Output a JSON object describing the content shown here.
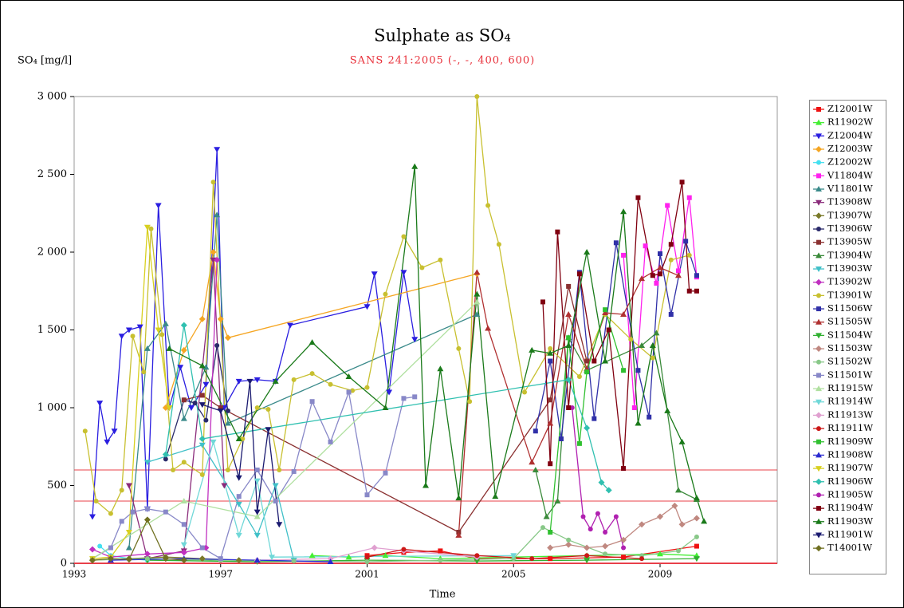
{
  "chart_data": {
    "type": "line",
    "title": "Sulphate as SO₄",
    "subtitle": "SANS 241:2005 (-, -, 400, 600)",
    "y_label": "SO₄ [mg/l]",
    "x_label": "Time",
    "xlim": [
      1993,
      2012.2
    ],
    "xticks": [
      1993,
      1997,
      2001,
      2005,
      2009
    ],
    "ylim": [
      0,
      3000
    ],
    "yticks": [
      0,
      500,
      {
        "value": 1000,
        "label": "1 000"
      },
      {
        "value": 1500,
        "label": "1 500"
      },
      {
        "value": 2000,
        "label": "2 000"
      },
      {
        "value": 2500,
        "label": "2 500"
      },
      {
        "value": 3000,
        "label": "3 000"
      }
    ],
    "hlines": [
      {
        "value": 600,
        "color": "#e8404a"
      },
      {
        "value": 400,
        "color": "#e8404a"
      }
    ],
    "legend": "right",
    "series": [
      {
        "name": "Z12001W",
        "color": "#ee1111",
        "marker": "square",
        "x": [
          2001.0,
          2002.0,
          2003.0,
          2004.0,
          2006,
          2008,
          2010.0
        ],
        "values": [
          50,
          70,
          80,
          30,
          30,
          40,
          110
        ]
      },
      {
        "name": "R11902W",
        "color": "#44ee33",
        "marker": "triangle",
        "x": [
          1999.5,
          2000.5,
          2001.5,
          2003,
          2005,
          2007,
          2009,
          2010.0
        ],
        "values": [
          50,
          40,
          50,
          30,
          40,
          50,
          60,
          50
        ]
      },
      {
        "name": "Z12004W",
        "color": "#2a1ee0",
        "marker": "down",
        "x": [
          1993.5,
          1993.7,
          1993.9,
          1994.1,
          1994.3,
          1994.5,
          1994.8,
          1995.0,
          1995.3,
          1995.6,
          1995.9,
          1996.2,
          1996.6,
          1996.9,
          1997.1,
          1997.5,
          1998.0,
          1998.5,
          1998.9,
          2001.0,
          2001.2,
          2001.6,
          2002.0,
          2002.3
        ],
        "values": [
          300,
          1030,
          780,
          850,
          1460,
          1500,
          1520,
          350,
          2300,
          1000,
          1260,
          1000,
          1150,
          2660,
          1000,
          1170,
          1180,
          1170,
          1530,
          1650,
          1860,
          1100,
          1870,
          1440
        ]
      },
      {
        "name": "Z12003W",
        "color": "#f5a623",
        "marker": "diamond",
        "x": [
          1995.5,
          1996.0,
          1996.5,
          1996.8,
          1997.0,
          1997.2,
          2004.0
        ],
        "values": [
          1000,
          1370,
          1570,
          2000,
          1570,
          1450,
          1860
        ]
      },
      {
        "name": "Z12002W",
        "color": "#44e0f0",
        "marker": "circle",
        "x": [
          1993.7,
          1994.0,
          1994.5,
          1995.0
        ],
        "values": [
          110,
          50,
          30,
          20
        ]
      },
      {
        "name": "V11804W",
        "color": "#ff22ee",
        "marker": "square",
        "x": [
          2008.0,
          2008.3,
          2008.6,
          2008.9,
          2009.2,
          2009.5,
          2009.8,
          2010.0
        ],
        "values": [
          1980,
          1000,
          2040,
          1800,
          2300,
          1880,
          2350,
          1840
        ]
      },
      {
        "name": "V11801W",
        "color": "#3a8a8a",
        "marker": "triangle",
        "x": [
          1994.5,
          1995.0,
          1995.5,
          1996.0,
          1996.6,
          1996.9,
          1997.2,
          2004.0
        ],
        "values": [
          100,
          1380,
          1540,
          930,
          1260,
          2240,
          900,
          1600
        ]
      },
      {
        "name": "T13908W",
        "color": "#8a2a7a",
        "marker": "down",
        "x": [
          1994.5,
          1995.0,
          1996.0,
          1996.8,
          1997.1
        ],
        "values": [
          500,
          30,
          80,
          1950,
          500
        ]
      },
      {
        "name": "T13907W",
        "color": "#7a7a2a",
        "marker": "diamond",
        "x": [
          1993.5,
          1994.5,
          1995.5,
          1996.5,
          1997.5
        ],
        "values": [
          20,
          30,
          40,
          30,
          20
        ]
      },
      {
        "name": "T13906W",
        "color": "#2a2a6a",
        "marker": "circle",
        "x": [
          1995.5,
          1996.0,
          1996.3,
          1996.6,
          1996.9,
          1997.2
        ],
        "values": [
          670,
          1050,
          1030,
          920,
          1400,
          980
        ]
      },
      {
        "name": "T13905W",
        "color": "#8a3030",
        "marker": "square",
        "x": [
          1996.0,
          1996.5,
          1997.0,
          2003.5,
          2006.0,
          2006.5,
          2007.0
        ],
        "values": [
          1050,
          1080,
          1000,
          200,
          1050,
          1780,
          1300
        ]
      },
      {
        "name": "T13904W",
        "color": "#3a8a3a",
        "marker": "triangle",
        "x": [
          2005.6,
          2005.9,
          2006.2,
          2006.5,
          2007.0,
          2008.5,
          2008.9,
          2009.5,
          2010.0
        ],
        "values": [
          600,
          300,
          400,
          1450,
          1240,
          1400,
          1480,
          470,
          410
        ]
      },
      {
        "name": "T13903W",
        "color": "#40c0c8",
        "marker": "down",
        "x": [
          1995.0,
          1996.5,
          1997.5,
          1998.0,
          1998.5,
          1999.0
        ],
        "values": [
          650,
          760,
          380,
          180,
          500,
          20
        ]
      },
      {
        "name": "T13902W",
        "color": "#c030c0",
        "marker": "diamond",
        "x": [
          1993.5,
          1994.0,
          1995.0,
          1996.0,
          1996.6,
          1996.9
        ],
        "values": [
          90,
          40,
          60,
          70,
          100,
          1950
        ]
      },
      {
        "name": "T13901W",
        "color": "#c8c030",
        "marker": "circle",
        "x": [
          1993.3,
          1993.6,
          1994.0,
          1994.3,
          1994.6,
          1994.9,
          1995.1,
          1995.4,
          1995.7,
          1996.0,
          1996.5,
          1996.8,
          1997.2,
          1997.6,
          1998.0,
          1998.3,
          1998.6,
          1999.0,
          1999.5,
          2000.0,
          2000.6,
          2001.0,
          2001.5,
          2002.0,
          2002.5,
          2003.0,
          2003.5,
          2003.8,
          2004.0,
          2004.3,
          2004.6,
          2005.3,
          2006.0,
          2006.8,
          2007.5,
          2008.2,
          2008.8,
          2009.3,
          2009.8
        ],
        "values": [
          850,
          400,
          320,
          470,
          1460,
          1230,
          2150,
          1470,
          600,
          650,
          570,
          2450,
          600,
          800,
          1000,
          990,
          600,
          1180,
          1220,
          1150,
          1110,
          1130,
          1730,
          2100,
          1900,
          1950,
          1380,
          1040,
          3000,
          2300,
          2050,
          1100,
          1380,
          1200,
          1600,
          1440,
          1320,
          1950,
          1980
        ]
      },
      {
        "name": "S11506W",
        "color": "#3030a8",
        "marker": "square",
        "x": [
          2005.6,
          2006.0,
          2006.3,
          2006.8,
          2007.2,
          2007.8,
          2008.4,
          2008.7,
          2009.0,
          2009.3,
          2009.7,
          2010.0
        ],
        "values": [
          850,
          1300,
          800,
          1870,
          930,
          2060,
          1240,
          940,
          1990,
          1600,
          2070,
          1850
        ]
      },
      {
        "name": "S11505W",
        "color": "#b03030",
        "marker": "triangle",
        "x": [
          2003.5,
          2004.0,
          2004.3,
          2005.5,
          2006.0,
          2006.5,
          2007.0,
          2007.5,
          2008.0,
          2008.5,
          2009.0,
          2009.5
        ],
        "values": [
          180,
          1870,
          1510,
          650,
          900,
          1600,
          1250,
          1610,
          1600,
          1830,
          1900,
          1850
        ]
      },
      {
        "name": "S11504W",
        "color": "#30b030",
        "marker": "down",
        "x": [
          1995,
          1998,
          2001,
          2004,
          2007,
          2010
        ],
        "values": [
          20,
          10,
          20,
          15,
          20,
          30
        ]
      },
      {
        "name": "S11503W",
        "color": "#c08880",
        "marker": "diamond",
        "x": [
          2006.0,
          2006.5,
          2007.0,
          2007.5,
          2008.0,
          2008.5,
          2009.0,
          2009.4,
          2009.6,
          2010.0
        ],
        "values": [
          100,
          120,
          100,
          110,
          150,
          250,
          300,
          370,
          250,
          290
        ]
      },
      {
        "name": "S11502W",
        "color": "#88c888",
        "marker": "circle",
        "x": [
          1993.5,
          1995,
          1997,
          1999,
          2001,
          2003,
          2005.0,
          2005.8,
          2006.5,
          2007.5,
          2008.5,
          2009.5,
          2010.0
        ],
        "values": [
          20,
          30,
          20,
          15,
          10,
          20,
          30,
          230,
          150,
          60,
          50,
          80,
          170
        ]
      },
      {
        "name": "S11501W",
        "color": "#8888c8",
        "marker": "square",
        "x": [
          1993.5,
          1994.0,
          1994.3,
          1994.6,
          1995.0,
          1995.5,
          1996.0,
          1996.5,
          1997.0,
          1997.5,
          1998.0,
          1998.5,
          1999.0,
          1999.5,
          2000.0,
          2000.5,
          2001.0,
          2001.5,
          2002.0,
          2002.3
        ],
        "values": [
          30,
          100,
          270,
          330,
          350,
          330,
          250,
          100,
          30,
          430,
          600,
          400,
          590,
          1040,
          780,
          1100,
          440,
          580,
          1060,
          1070
        ]
      },
      {
        "name": "R11915W",
        "color": "#b0e0a0",
        "marker": "triangle",
        "x": [
          1993.5,
          1996.0,
          1998.0,
          2004.0
        ],
        "values": [
          30,
          400,
          300,
          1680
        ]
      },
      {
        "name": "R11914W",
        "color": "#70d8d8",
        "marker": "down",
        "x": [
          1996.0,
          1996.8,
          1997.5,
          1998.0,
          1998.4,
          2005.0
        ],
        "values": [
          120,
          780,
          180,
          530,
          40,
          50
        ]
      },
      {
        "name": "R11913W",
        "color": "#e0a0d0",
        "marker": "diamond",
        "x": [
          1998,
          2000,
          2001.2,
          2002,
          2004
        ],
        "values": [
          20,
          30,
          100,
          80,
          40
        ]
      },
      {
        "name": "R11911W",
        "color": "#cc1818",
        "marker": "circle",
        "x": [
          2001.0,
          2002.0,
          2004.0,
          2005.5,
          2007.0,
          2008.5
        ],
        "values": [
          40,
          90,
          50,
          30,
          50,
          30
        ]
      },
      {
        "name": "R11909W",
        "color": "#30c030",
        "marker": "square",
        "x": [
          2006.0,
          2006.5,
          2006.8,
          2007.0,
          2007.5,
          2008.0
        ],
        "values": [
          200,
          1450,
          770,
          1230,
          1630,
          1240
        ]
      },
      {
        "name": "R11908W",
        "color": "#2a2ad0",
        "marker": "triangle",
        "x": [
          1994,
          1996,
          1998,
          2000
        ],
        "values": [
          20,
          30,
          20,
          10
        ]
      },
      {
        "name": "R11907W",
        "color": "#d8d020",
        "marker": "down",
        "x": [
          1993.5,
          1994.0,
          1994.5,
          1995.0,
          1995.3,
          1995.6
        ],
        "values": [
          30,
          40,
          200,
          2160,
          1500,
          1000
        ]
      },
      {
        "name": "R11906W",
        "color": "#30c0b0",
        "marker": "diamond",
        "x": [
          1995.5,
          1996.0,
          1996.5,
          2006.5,
          2007.0,
          2007.4,
          2007.6
        ],
        "values": [
          700,
          1530,
          800,
          1180,
          870,
          520,
          470
        ]
      },
      {
        "name": "R11905W",
        "color": "#b020b0",
        "marker": "circle",
        "x": [
          2006.6,
          2006.9,
          2007.1,
          2007.3,
          2007.5,
          2007.8,
          2008.0
        ],
        "values": [
          1000,
          300,
          220,
          320,
          200,
          300,
          100
        ]
      },
      {
        "name": "R11904W",
        "color": "#800010",
        "marker": "square",
        "x": [
          2005.8,
          2006.0,
          2006.2,
          2006.5,
          2006.8,
          2007.2,
          2007.6,
          2008.0,
          2008.4,
          2008.8,
          2009.0,
          2009.3,
          2009.6,
          2009.8,
          2010.0
        ],
        "values": [
          1680,
          640,
          2130,
          1000,
          1860,
          1300,
          1500,
          610,
          2350,
          1850,
          1860,
          2050,
          2450,
          1750,
          1750
        ]
      },
      {
        "name": "R11903W",
        "color": "#1a7a1a",
        "marker": "triangle",
        "x": [
          1995.6,
          1996.5,
          1997.5,
          1998.5,
          1999.5,
          2000.5,
          2001.5,
          2002.3,
          2002.6,
          2003.0,
          2003.5,
          2004.0,
          2004.5,
          2005.5,
          2006.0,
          2006.5,
          2007.0,
          2007.5,
          2008.0,
          2008.4,
          2008.8,
          2009.2,
          2009.6,
          2010.0,
          2010.2
        ],
        "values": [
          1380,
          1270,
          800,
          1170,
          1420,
          1200,
          1000,
          2550,
          500,
          1250,
          420,
          1730,
          430,
          1370,
          1350,
          1400,
          2000,
          1300,
          2260,
          900,
          1400,
          980,
          780,
          420,
          270
        ]
      },
      {
        "name": "R11901W",
        "color": "#1a1a70",
        "marker": "down",
        "x": [
          1996.5,
          1997.0,
          1997.5,
          1997.8,
          1998.0,
          1998.3,
          1998.6
        ],
        "values": [
          1020,
          980,
          550,
          1170,
          330,
          860,
          250
        ]
      },
      {
        "name": "T14001W",
        "color": "#707020",
        "marker": "diamond",
        "x": [
          1993.5,
          1994.0,
          1994.5,
          1995.0,
          1995.5,
          1996.0
        ],
        "values": [
          20,
          30,
          25,
          280,
          30,
          20
        ]
      }
    ]
  }
}
